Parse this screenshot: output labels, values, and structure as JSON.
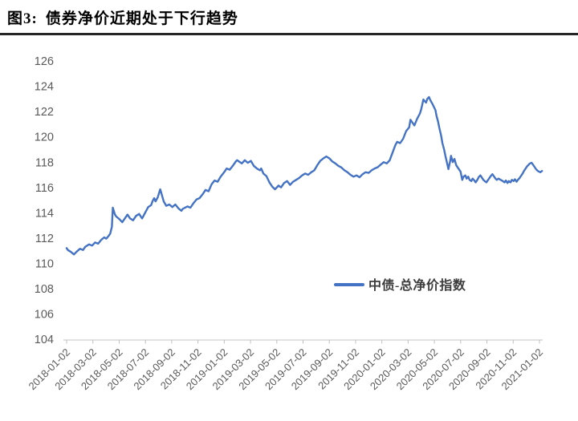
{
  "header": {
    "figure_label": "图3:",
    "title": "债券净价近期处于下行趋势"
  },
  "chart_data": {
    "type": "line",
    "title": "债券净价近期处于下行趋势",
    "xlabel": "",
    "ylabel": "",
    "ylim": [
      104,
      126
    ],
    "grid": false,
    "legend_position": "bottom-center-inside",
    "y_ticks": [
      126,
      124,
      122,
      120,
      118,
      116,
      114,
      112,
      110,
      108,
      106,
      104
    ],
    "x_tick_labels": [
      "2018-01-02",
      "2018-03-02",
      "2018-05-02",
      "2018-07-02",
      "2018-09-02",
      "2018-11-02",
      "2019-01-02",
      "2019-03-02",
      "2019-05-02",
      "2019-07-02",
      "2019-09-02",
      "2019-11-02",
      "2020-01-02",
      "2020-03-02",
      "2020-05-02",
      "2020-07-02",
      "2020-09-02",
      "2020-11-02",
      "2021-01-02"
    ],
    "x_range": [
      "2018-01-02",
      "2021-01-02"
    ],
    "colors": {
      "line": "#4472C4",
      "axis_text": "#595959",
      "axis_line": "#CFCFCF",
      "tick_mark": "#BFBFBF"
    },
    "series": [
      {
        "name": "中债-总净价指数",
        "color": "#4472C4",
        "points": [
          [
            "2018-01-02",
            111.2
          ],
          [
            "2018-01-05",
            111.05
          ],
          [
            "2018-01-12",
            110.9
          ],
          [
            "2018-01-19",
            110.7
          ],
          [
            "2018-01-26",
            110.95
          ],
          [
            "2018-02-02",
            111.15
          ],
          [
            "2018-02-09",
            111.05
          ],
          [
            "2018-02-14",
            111.3
          ],
          [
            "2018-02-23",
            111.5
          ],
          [
            "2018-03-02",
            111.4
          ],
          [
            "2018-03-09",
            111.65
          ],
          [
            "2018-03-16",
            111.55
          ],
          [
            "2018-03-23",
            111.85
          ],
          [
            "2018-03-30",
            112.05
          ],
          [
            "2018-04-04",
            111.95
          ],
          [
            "2018-04-10",
            112.2
          ],
          [
            "2018-04-13",
            112.35
          ],
          [
            "2018-04-17",
            112.9
          ],
          [
            "2018-04-19",
            114.4
          ],
          [
            "2018-04-24",
            113.85
          ],
          [
            "2018-04-27",
            113.7
          ],
          [
            "2018-05-04",
            113.5
          ],
          [
            "2018-05-11",
            113.25
          ],
          [
            "2018-05-18",
            113.6
          ],
          [
            "2018-05-23",
            113.85
          ],
          [
            "2018-05-29",
            113.55
          ],
          [
            "2018-06-05",
            113.4
          ],
          [
            "2018-06-12",
            113.75
          ],
          [
            "2018-06-19",
            113.9
          ],
          [
            "2018-06-26",
            113.55
          ],
          [
            "2018-07-03",
            114.0
          ],
          [
            "2018-07-10",
            114.45
          ],
          [
            "2018-07-17",
            114.6
          ],
          [
            "2018-07-20",
            114.9
          ],
          [
            "2018-07-24",
            115.15
          ],
          [
            "2018-07-27",
            114.9
          ],
          [
            "2018-08-01",
            115.2
          ],
          [
            "2018-08-07",
            115.85
          ],
          [
            "2018-08-10",
            115.5
          ],
          [
            "2018-08-15",
            114.9
          ],
          [
            "2018-08-21",
            114.55
          ],
          [
            "2018-08-28",
            114.65
          ],
          [
            "2018-09-04",
            114.45
          ],
          [
            "2018-09-11",
            114.65
          ],
          [
            "2018-09-18",
            114.35
          ],
          [
            "2018-09-25",
            114.15
          ],
          [
            "2018-09-28",
            114.3
          ],
          [
            "2018-10-09",
            114.5
          ],
          [
            "2018-10-16",
            114.4
          ],
          [
            "2018-10-23",
            114.75
          ],
          [
            "2018-10-30",
            115.05
          ],
          [
            "2018-11-06",
            115.15
          ],
          [
            "2018-11-13",
            115.45
          ],
          [
            "2018-11-20",
            115.8
          ],
          [
            "2018-11-27",
            115.7
          ],
          [
            "2018-12-04",
            116.25
          ],
          [
            "2018-12-11",
            116.55
          ],
          [
            "2018-12-18",
            116.45
          ],
          [
            "2018-12-25",
            116.85
          ],
          [
            "2019-01-02",
            117.2
          ],
          [
            "2019-01-08",
            117.5
          ],
          [
            "2019-01-15",
            117.4
          ],
          [
            "2019-01-22",
            117.7
          ],
          [
            "2019-01-29",
            118.05
          ],
          [
            "2019-02-01",
            118.15
          ],
          [
            "2019-02-12",
            117.9
          ],
          [
            "2019-02-19",
            118.15
          ],
          [
            "2019-02-26",
            117.95
          ],
          [
            "2019-03-05",
            118.1
          ],
          [
            "2019-03-12",
            117.7
          ],
          [
            "2019-03-19",
            117.5
          ],
          [
            "2019-03-26",
            117.35
          ],
          [
            "2019-03-29",
            117.5
          ],
          [
            "2019-04-03",
            117.1
          ],
          [
            "2019-04-10",
            116.9
          ],
          [
            "2019-04-17",
            116.4
          ],
          [
            "2019-04-24",
            116.05
          ],
          [
            "2019-04-30",
            115.85
          ],
          [
            "2019-05-08",
            116.15
          ],
          [
            "2019-05-14",
            116.0
          ],
          [
            "2019-05-21",
            116.35
          ],
          [
            "2019-05-28",
            116.5
          ],
          [
            "2019-06-04",
            116.2
          ],
          [
            "2019-06-11",
            116.45
          ],
          [
            "2019-06-18",
            116.6
          ],
          [
            "2019-06-25",
            116.75
          ],
          [
            "2019-07-02",
            116.95
          ],
          [
            "2019-07-09",
            117.1
          ],
          [
            "2019-07-16",
            117.0
          ],
          [
            "2019-07-23",
            117.2
          ],
          [
            "2019-07-30",
            117.35
          ],
          [
            "2019-08-06",
            117.75
          ],
          [
            "2019-08-13",
            118.1
          ],
          [
            "2019-08-20",
            118.3
          ],
          [
            "2019-08-27",
            118.45
          ],
          [
            "2019-09-03",
            118.3
          ],
          [
            "2019-09-10",
            118.05
          ],
          [
            "2019-09-17",
            117.9
          ],
          [
            "2019-09-24",
            117.7
          ],
          [
            "2019-09-30",
            117.6
          ],
          [
            "2019-10-08",
            117.35
          ],
          [
            "2019-10-15",
            117.2
          ],
          [
            "2019-10-22",
            117.0
          ],
          [
            "2019-10-29",
            116.85
          ],
          [
            "2019-11-05",
            116.95
          ],
          [
            "2019-11-12",
            116.8
          ],
          [
            "2019-11-19",
            117.05
          ],
          [
            "2019-11-26",
            117.2
          ],
          [
            "2019-12-03",
            117.15
          ],
          [
            "2019-12-10",
            117.35
          ],
          [
            "2019-12-17",
            117.5
          ],
          [
            "2019-12-24",
            117.6
          ],
          [
            "2019-12-31",
            117.8
          ],
          [
            "2020-01-07",
            118.0
          ],
          [
            "2020-01-14",
            117.9
          ],
          [
            "2020-01-21",
            118.15
          ],
          [
            "2020-01-23",
            118.35
          ],
          [
            "2020-02-03",
            119.35
          ],
          [
            "2020-02-07",
            119.6
          ],
          [
            "2020-02-14",
            119.5
          ],
          [
            "2020-02-21",
            119.85
          ],
          [
            "2020-02-28",
            120.45
          ],
          [
            "2020-03-06",
            120.75
          ],
          [
            "2020-03-09",
            121.35
          ],
          [
            "2020-03-13",
            121.15
          ],
          [
            "2020-03-18",
            120.9
          ],
          [
            "2020-03-24",
            121.4
          ],
          [
            "2020-03-31",
            121.85
          ],
          [
            "2020-04-03",
            122.2
          ],
          [
            "2020-04-08",
            122.95
          ],
          [
            "2020-04-14",
            122.7
          ],
          [
            "2020-04-17",
            123.0
          ],
          [
            "2020-04-21",
            123.15
          ],
          [
            "2020-04-24",
            122.9
          ],
          [
            "2020-04-29",
            122.6
          ],
          [
            "2020-05-06",
            122.1
          ],
          [
            "2020-05-08",
            121.7
          ],
          [
            "2020-05-12",
            121.2
          ],
          [
            "2020-05-15",
            120.7
          ],
          [
            "2020-05-19",
            120.1
          ],
          [
            "2020-05-22",
            119.5
          ],
          [
            "2020-05-26",
            119.0
          ],
          [
            "2020-05-29",
            118.5
          ],
          [
            "2020-06-02",
            117.9
          ],
          [
            "2020-06-05",
            117.45
          ],
          [
            "2020-06-09",
            118.1
          ],
          [
            "2020-06-11",
            118.5
          ],
          [
            "2020-06-15",
            118.0
          ],
          [
            "2020-06-19",
            118.25
          ],
          [
            "2020-06-23",
            117.75
          ],
          [
            "2020-06-30",
            117.4
          ],
          [
            "2020-07-03",
            117.25
          ],
          [
            "2020-07-07",
            116.6
          ],
          [
            "2020-07-10",
            116.85
          ],
          [
            "2020-07-14",
            116.95
          ],
          [
            "2020-07-17",
            116.7
          ],
          [
            "2020-07-21",
            116.85
          ],
          [
            "2020-07-24",
            116.6
          ],
          [
            "2020-07-28",
            116.5
          ],
          [
            "2020-07-31",
            116.7
          ],
          [
            "2020-08-04",
            116.55
          ],
          [
            "2020-08-07",
            116.4
          ],
          [
            "2020-08-11",
            116.6
          ],
          [
            "2020-08-14",
            116.8
          ],
          [
            "2020-08-18",
            116.95
          ],
          [
            "2020-08-21",
            116.8
          ],
          [
            "2020-08-25",
            116.6
          ],
          [
            "2020-08-28",
            116.5
          ],
          [
            "2020-09-01",
            116.4
          ],
          [
            "2020-09-04",
            116.55
          ],
          [
            "2020-09-08",
            116.75
          ],
          [
            "2020-09-11",
            116.9
          ],
          [
            "2020-09-15",
            117.05
          ],
          [
            "2020-09-18",
            116.9
          ],
          [
            "2020-09-22",
            116.7
          ],
          [
            "2020-09-25",
            116.6
          ],
          [
            "2020-09-29",
            116.7
          ],
          [
            "2020-10-09",
            116.5
          ],
          [
            "2020-10-13",
            116.4
          ],
          [
            "2020-10-16",
            116.55
          ],
          [
            "2020-10-20",
            116.35
          ],
          [
            "2020-10-23",
            116.5
          ],
          [
            "2020-10-27",
            116.4
          ],
          [
            "2020-10-30",
            116.6
          ],
          [
            "2020-11-03",
            116.5
          ],
          [
            "2020-11-06",
            116.65
          ],
          [
            "2020-11-10",
            116.45
          ],
          [
            "2020-11-13",
            116.6
          ],
          [
            "2020-11-17",
            116.75
          ],
          [
            "2020-11-20",
            116.9
          ],
          [
            "2020-11-24",
            117.1
          ],
          [
            "2020-11-27",
            117.3
          ],
          [
            "2020-12-01",
            117.5
          ],
          [
            "2020-12-04",
            117.65
          ],
          [
            "2020-12-08",
            117.8
          ],
          [
            "2020-12-11",
            117.9
          ],
          [
            "2020-12-15",
            117.95
          ],
          [
            "2020-12-18",
            117.8
          ],
          [
            "2020-12-22",
            117.6
          ],
          [
            "2020-12-25",
            117.45
          ],
          [
            "2020-12-29",
            117.3
          ],
          [
            "2021-01-04",
            117.2
          ],
          [
            "2021-01-08",
            117.3
          ]
        ]
      }
    ]
  }
}
